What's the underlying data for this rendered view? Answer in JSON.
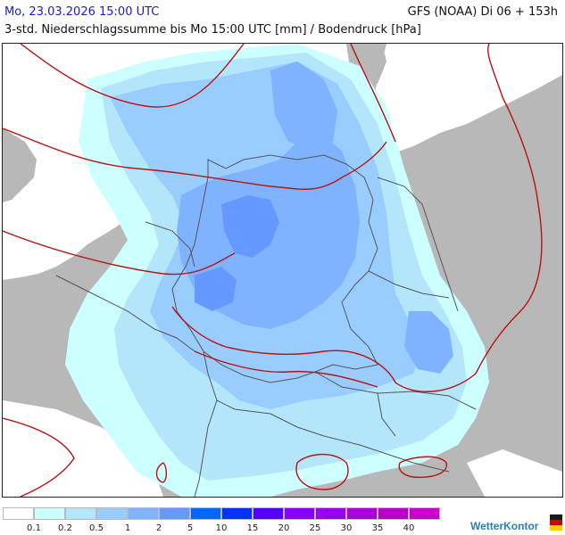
{
  "header": {
    "date_time": "Mo, 23.03.2026 15:00 UTC",
    "model_run": "GFS (NOAA) Di 06 + 153h",
    "subtitle": "3-std. Niederschlagssumme bis Mo 15:00 UTC [mm] / Bodendruck [hPa]"
  },
  "colors": {
    "sea": "#ffffff",
    "land": "#b8b8b8",
    "border": "#555555",
    "isobar": "#bb1111"
  },
  "legend": {
    "thresholds": [
      "0.1",
      "0.2",
      "0.5",
      "1",
      "2",
      "5",
      "10",
      "15",
      "20",
      "25",
      "30",
      "35",
      "40"
    ],
    "colors": [
      "#ffffff",
      "#ccffff",
      "#b3e5fb",
      "#99ccff",
      "#7fb2ff",
      "#6699ff",
      "#0066ff",
      "#0033ff",
      "#5500ff",
      "#8800ff",
      "#9900ee",
      "#aa00dd",
      "#bb00cc",
      "#cc00cc"
    ]
  },
  "brand": {
    "name": "WetterKontor",
    "icon": "tricolor-flag-icon"
  }
}
